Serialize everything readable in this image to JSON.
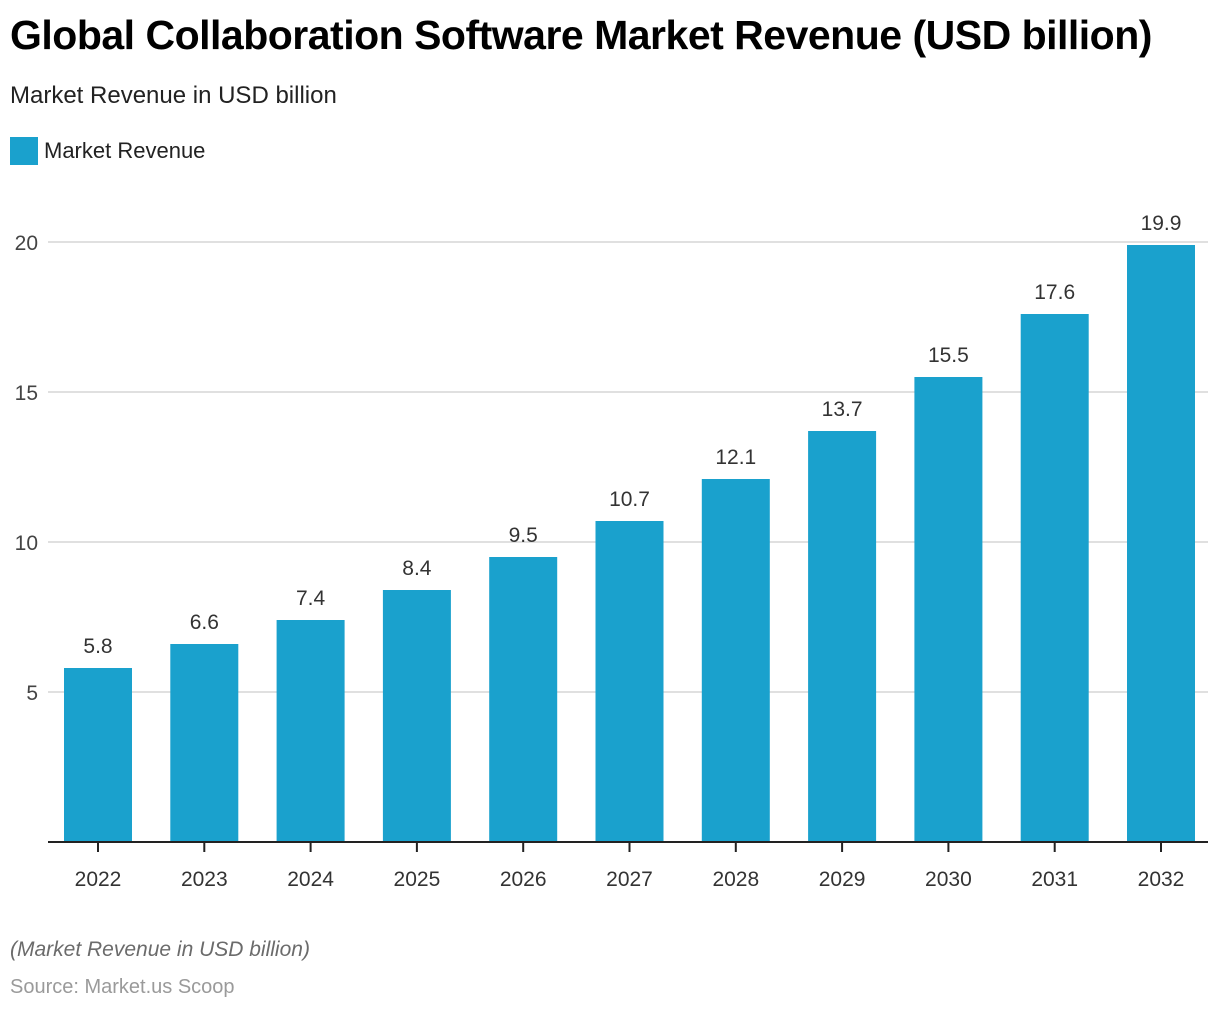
{
  "chart_data": {
    "type": "bar",
    "title": "Global Collaboration Software Market Revenue (USD billion)",
    "subtitle": "Market Revenue in USD billion",
    "xlabel": "",
    "ylabel": "",
    "categories": [
      "2022",
      "2023",
      "2024",
      "2025",
      "2026",
      "2027",
      "2028",
      "2029",
      "2030",
      "2031",
      "2032"
    ],
    "series": [
      {
        "name": "Market Revenue",
        "color": "#1aa1cd",
        "values": [
          5.8,
          6.6,
          7.4,
          8.4,
          9.5,
          10.7,
          12.1,
          13.7,
          15.5,
          17.6,
          19.9
        ],
        "labels": [
          "5.8",
          "6.6",
          "7.4",
          "8.4",
          "9.5",
          "10.7",
          "12.1",
          "13.7",
          "15.5",
          "17.6",
          "19.9"
        ]
      }
    ],
    "ylim": [
      0,
      20
    ],
    "yticks": [
      5,
      10,
      15,
      20
    ],
    "ytick_labels": [
      "5",
      "10",
      "15",
      "20"
    ],
    "grid": true,
    "legend": "top-left",
    "footnote": "(Market Revenue in USD billion)",
    "source": "Source: Market.us Scoop"
  },
  "colors": {
    "bar": "#1aa1cd",
    "grid": "#d6d6d6",
    "axis": "#222222",
    "text": "#333333"
  }
}
